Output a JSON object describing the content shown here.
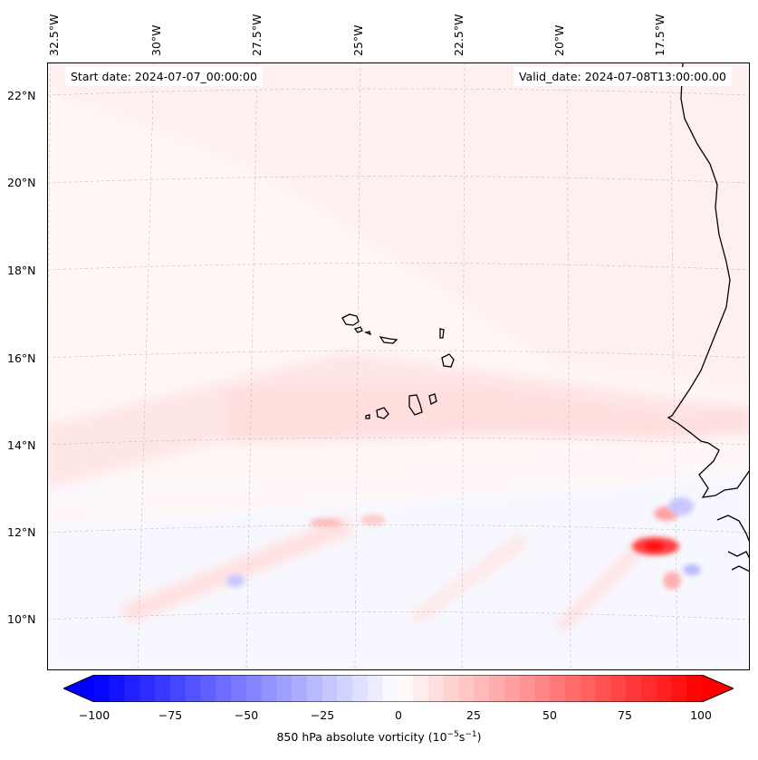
{
  "map": {
    "lon_labels": [
      "32.5°W",
      "30°W",
      "27.5°W",
      "25°W",
      "22.5°W",
      "20°W",
      "17.5°W"
    ],
    "lat_labels": [
      "22°N",
      "20°N",
      "18°N",
      "16°N",
      "14°N",
      "12°N",
      "10°N"
    ],
    "start_date": "Start date: 2024-07-07_00:00:00",
    "valid_date": "Valid_date: 2024-07-08T13:00:00.00",
    "field": "850 hPa absolute vorticity",
    "colormap": "bwr",
    "colors": {
      "negative": "#0000ff",
      "zero": "#ffffff",
      "positive": "#ff0000",
      "coastline": "#000000"
    }
  },
  "colorbar": {
    "ticks": [
      "−100",
      "−75",
      "−50",
      "−25",
      "0",
      "25",
      "50",
      "75",
      "100"
    ],
    "label": "850 hPa absolute vorticity (10",
    "label_exp1": "−5",
    "label_mid": "s",
    "label_exp2": "−1",
    "label_end": ")",
    "range": [
      -100,
      100
    ]
  }
}
